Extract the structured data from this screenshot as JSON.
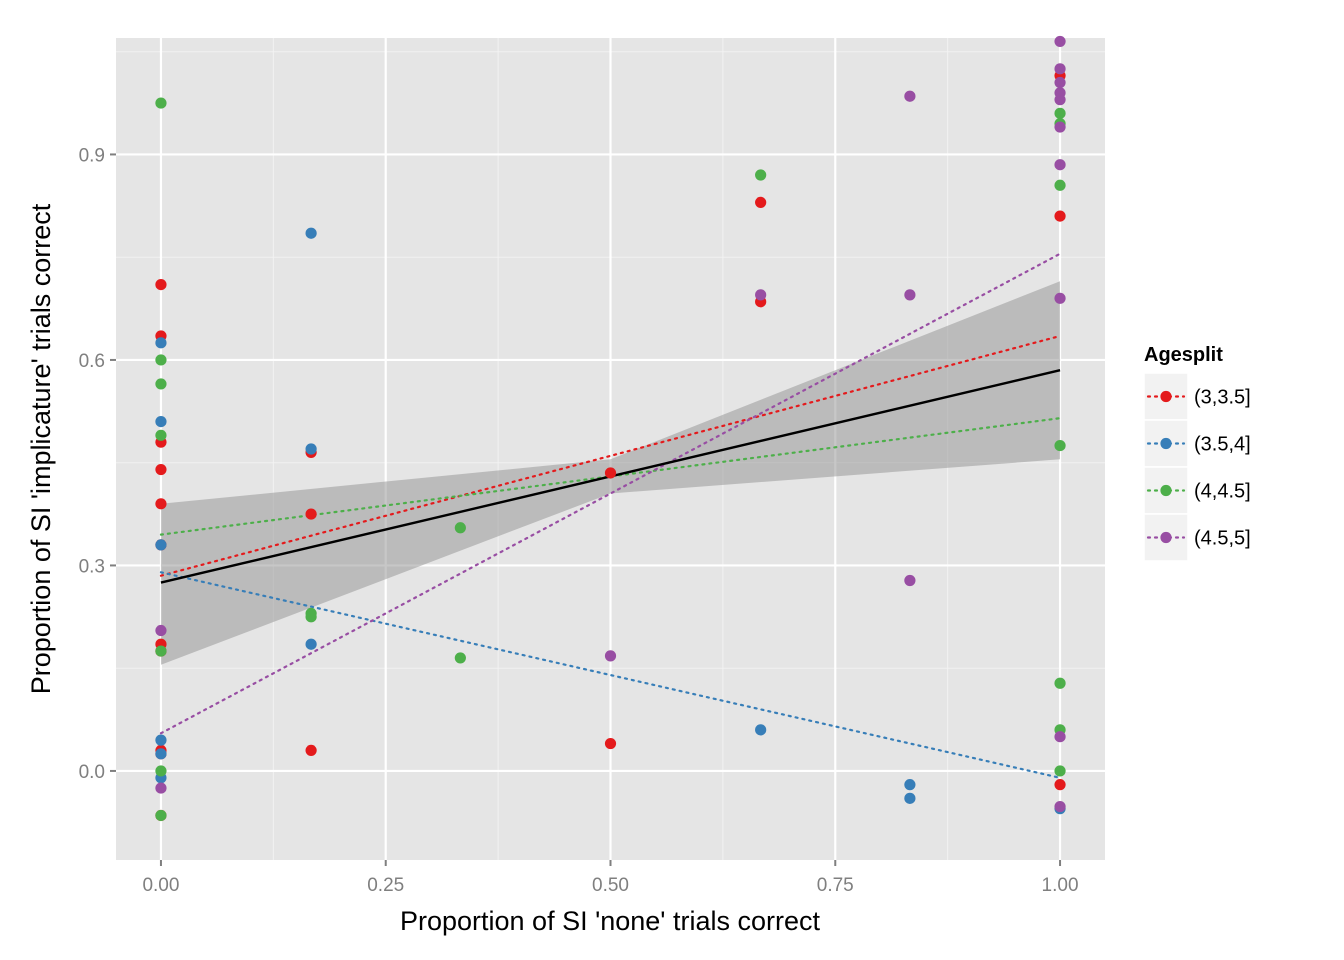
{
  "chart_data": {
    "type": "scatter",
    "title": "",
    "xlabel": "Proportion of SI 'none' trials correct",
    "ylabel": "Proportion of SI 'implicature' trials correct",
    "xlim": [
      -0.05,
      1.05
    ],
    "ylim": [
      -0.13,
      1.07
    ],
    "x_ticks": [
      0,
      0.25,
      0.5,
      0.75,
      1
    ],
    "x_tick_labels": [
      "0.00",
      "0.25",
      "0.50",
      "0.75",
      "1.00"
    ],
    "y_ticks": [
      0,
      0.3,
      0.6,
      0.9
    ],
    "y_tick_labels": [
      "0.0",
      "0.3",
      "0.6",
      "0.9"
    ],
    "grid": true,
    "background": "#e5e5e5",
    "legend": {
      "title": "Agesplit",
      "placement": "right"
    },
    "series": [
      {
        "name": "(3,3.5]",
        "color": "#e41a1c",
        "points": [
          [
            0,
            0.71
          ],
          [
            0,
            0.635
          ],
          [
            0,
            0.48
          ],
          [
            0,
            0.44
          ],
          [
            0,
            0.39
          ],
          [
            0,
            0.33
          ],
          [
            0,
            0.185
          ],
          [
            0,
            0.175
          ],
          [
            0,
            0.03
          ],
          [
            0,
            0.025
          ],
          [
            0,
            -0.065
          ],
          [
            0.167,
            0.465
          ],
          [
            0.167,
            0.375
          ],
          [
            0.167,
            0.03
          ],
          [
            0.5,
            0.435
          ],
          [
            0.5,
            0.04
          ],
          [
            0.667,
            0.83
          ],
          [
            0.667,
            0.685
          ],
          [
            1,
            1.015
          ],
          [
            1,
            0.81
          ],
          [
            1,
            -0.02
          ]
        ],
        "fit": {
          "intercept": 0.285,
          "slope": 0.35
        }
      },
      {
        "name": "(3.5,4]",
        "color": "#377eb8",
        "points": [
          [
            0,
            0.625
          ],
          [
            0,
            0.51
          ],
          [
            0,
            0.33
          ],
          [
            0,
            0.045
          ],
          [
            0,
            0.025
          ],
          [
            0,
            -0.01
          ],
          [
            0.167,
            0.785
          ],
          [
            0.167,
            0.47
          ],
          [
            0.167,
            0.185
          ],
          [
            0.667,
            0.06
          ],
          [
            0.833,
            -0.02
          ],
          [
            0.833,
            -0.04
          ],
          [
            1,
            -0.055
          ]
        ],
        "fit": {
          "intercept": 0.29,
          "slope": -0.3
        }
      },
      {
        "name": "(4,4.5]",
        "color": "#4daf4a",
        "points": [
          [
            0,
            0.975
          ],
          [
            0,
            0.6
          ],
          [
            0,
            0.565
          ],
          [
            0,
            0.49
          ],
          [
            0,
            0.175
          ],
          [
            0,
            0.0
          ],
          [
            0,
            -0.065
          ],
          [
            0.167,
            0.23
          ],
          [
            0.167,
            0.225
          ],
          [
            0.333,
            0.355
          ],
          [
            0.333,
            0.165
          ],
          [
            0.667,
            0.87
          ],
          [
            1,
            0.96
          ],
          [
            1,
            0.945
          ],
          [
            1,
            0.855
          ],
          [
            1,
            0.475
          ],
          [
            1,
            0.128
          ],
          [
            1,
            0.06
          ],
          [
            1,
            0.0
          ]
        ],
        "fit": {
          "intercept": 0.345,
          "slope": 0.17
        }
      },
      {
        "name": "(4.5,5]",
        "color": "#984ea3",
        "points": [
          [
            0,
            0.205
          ],
          [
            0,
            -0.025
          ],
          [
            0.5,
            0.168
          ],
          [
            0.667,
            0.695
          ],
          [
            0.833,
            0.985
          ],
          [
            0.833,
            0.695
          ],
          [
            0.833,
            0.278
          ],
          [
            1,
            1.065
          ],
          [
            1,
            1.025
          ],
          [
            1,
            1.005
          ],
          [
            1,
            0.99
          ],
          [
            1,
            0.98
          ],
          [
            1,
            0.94
          ],
          [
            1,
            0.885
          ],
          [
            1,
            0.69
          ],
          [
            1,
            0.05
          ],
          [
            1,
            -0.052
          ]
        ],
        "fit": {
          "intercept": 0.055,
          "slope": 0.7
        }
      }
    ],
    "overall_fit": {
      "intercept": 0.275,
      "slope": 0.31,
      "ci_lower": [
        [
          0,
          0.155
        ],
        [
          0.5,
          0.405
        ],
        [
          1,
          0.455
        ]
      ],
      "ci_upper": [
        [
          0,
          0.39
        ],
        [
          0.5,
          0.455
        ],
        [
          1,
          0.715
        ]
      ],
      "line_color": "#000000",
      "band_color": "#999999"
    }
  }
}
